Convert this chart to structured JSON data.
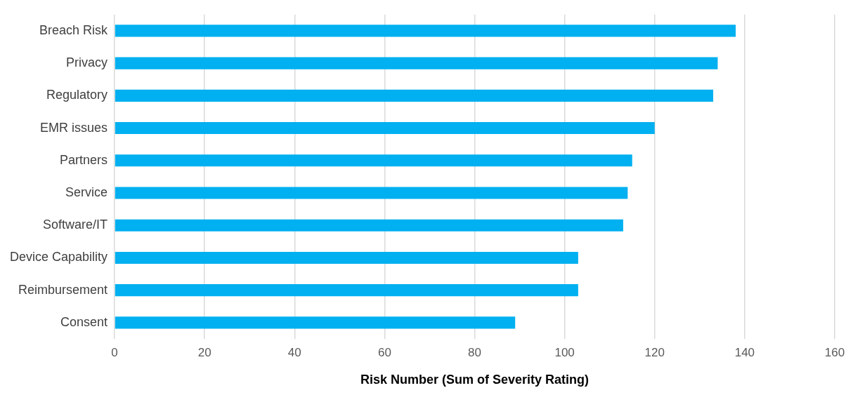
{
  "chart_data": {
    "type": "bar",
    "orientation": "horizontal",
    "xlabel": "Risk Number (Sum of Severity Rating)",
    "categories": [
      "Breach Risk",
      "Privacy",
      "Regulatory",
      "EMR issues",
      "Partners",
      "Service",
      "Software/IT",
      "Device Capability",
      "Reimbursement",
      "Consent"
    ],
    "values": [
      138,
      134,
      133,
      120,
      115,
      114,
      113,
      103,
      103,
      89
    ],
    "color": "#00b0f0",
    "xlim": [
      0,
      160
    ],
    "xticks": [
      0,
      20,
      40,
      60,
      80,
      100,
      120,
      140,
      160
    ],
    "grid": "x",
    "legend": false
  }
}
